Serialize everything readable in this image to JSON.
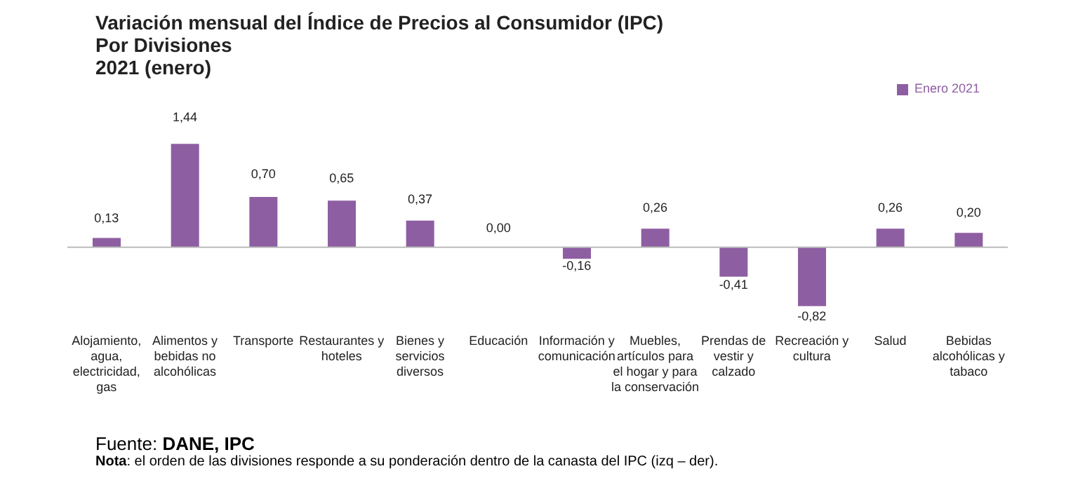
{
  "chart_data": {
    "type": "bar",
    "title": "Variación mensual del Índice de Precios al Consumidor (IPC)",
    "subtitle": "Por Divisiones\n2021 (enero)",
    "categories": [
      "Alojamiento, agua, electricidad, gas",
      "Alimentos y bebidas no alcohólicas",
      "Transporte",
      "Restaurantes y hoteles",
      "Bienes y servicios diversos",
      "Educación",
      "Información y comunicación",
      "Muebles, artículos para el hogar y para la conservación",
      "Prendas de vestir y calzado",
      "Recreación y cultura",
      "Salud",
      "Bebidas alcohólicas y tabaco"
    ],
    "series": [
      {
        "name": "Enero 2021",
        "color": "#8e5ea2",
        "values": [
          0.13,
          1.44,
          0.7,
          0.65,
          0.37,
          0.0,
          -0.16,
          0.26,
          -0.41,
          -0.82,
          0.26,
          0.2
        ],
        "value_labels": [
          "0,13",
          "1,44",
          "0,70",
          "0,65",
          "0,37",
          "0,00",
          "-0,16",
          "0,26",
          "-0,41",
          "-0,82",
          "0,26",
          "0,20"
        ]
      }
    ],
    "legend": "top right",
    "grid": false,
    "annotations": [
      "Fuente: DANE, IPC",
      "Nota: el orden de las divisiones responde a su ponderación dentro de la canasta del IPC (izq – der)."
    ]
  }
}
